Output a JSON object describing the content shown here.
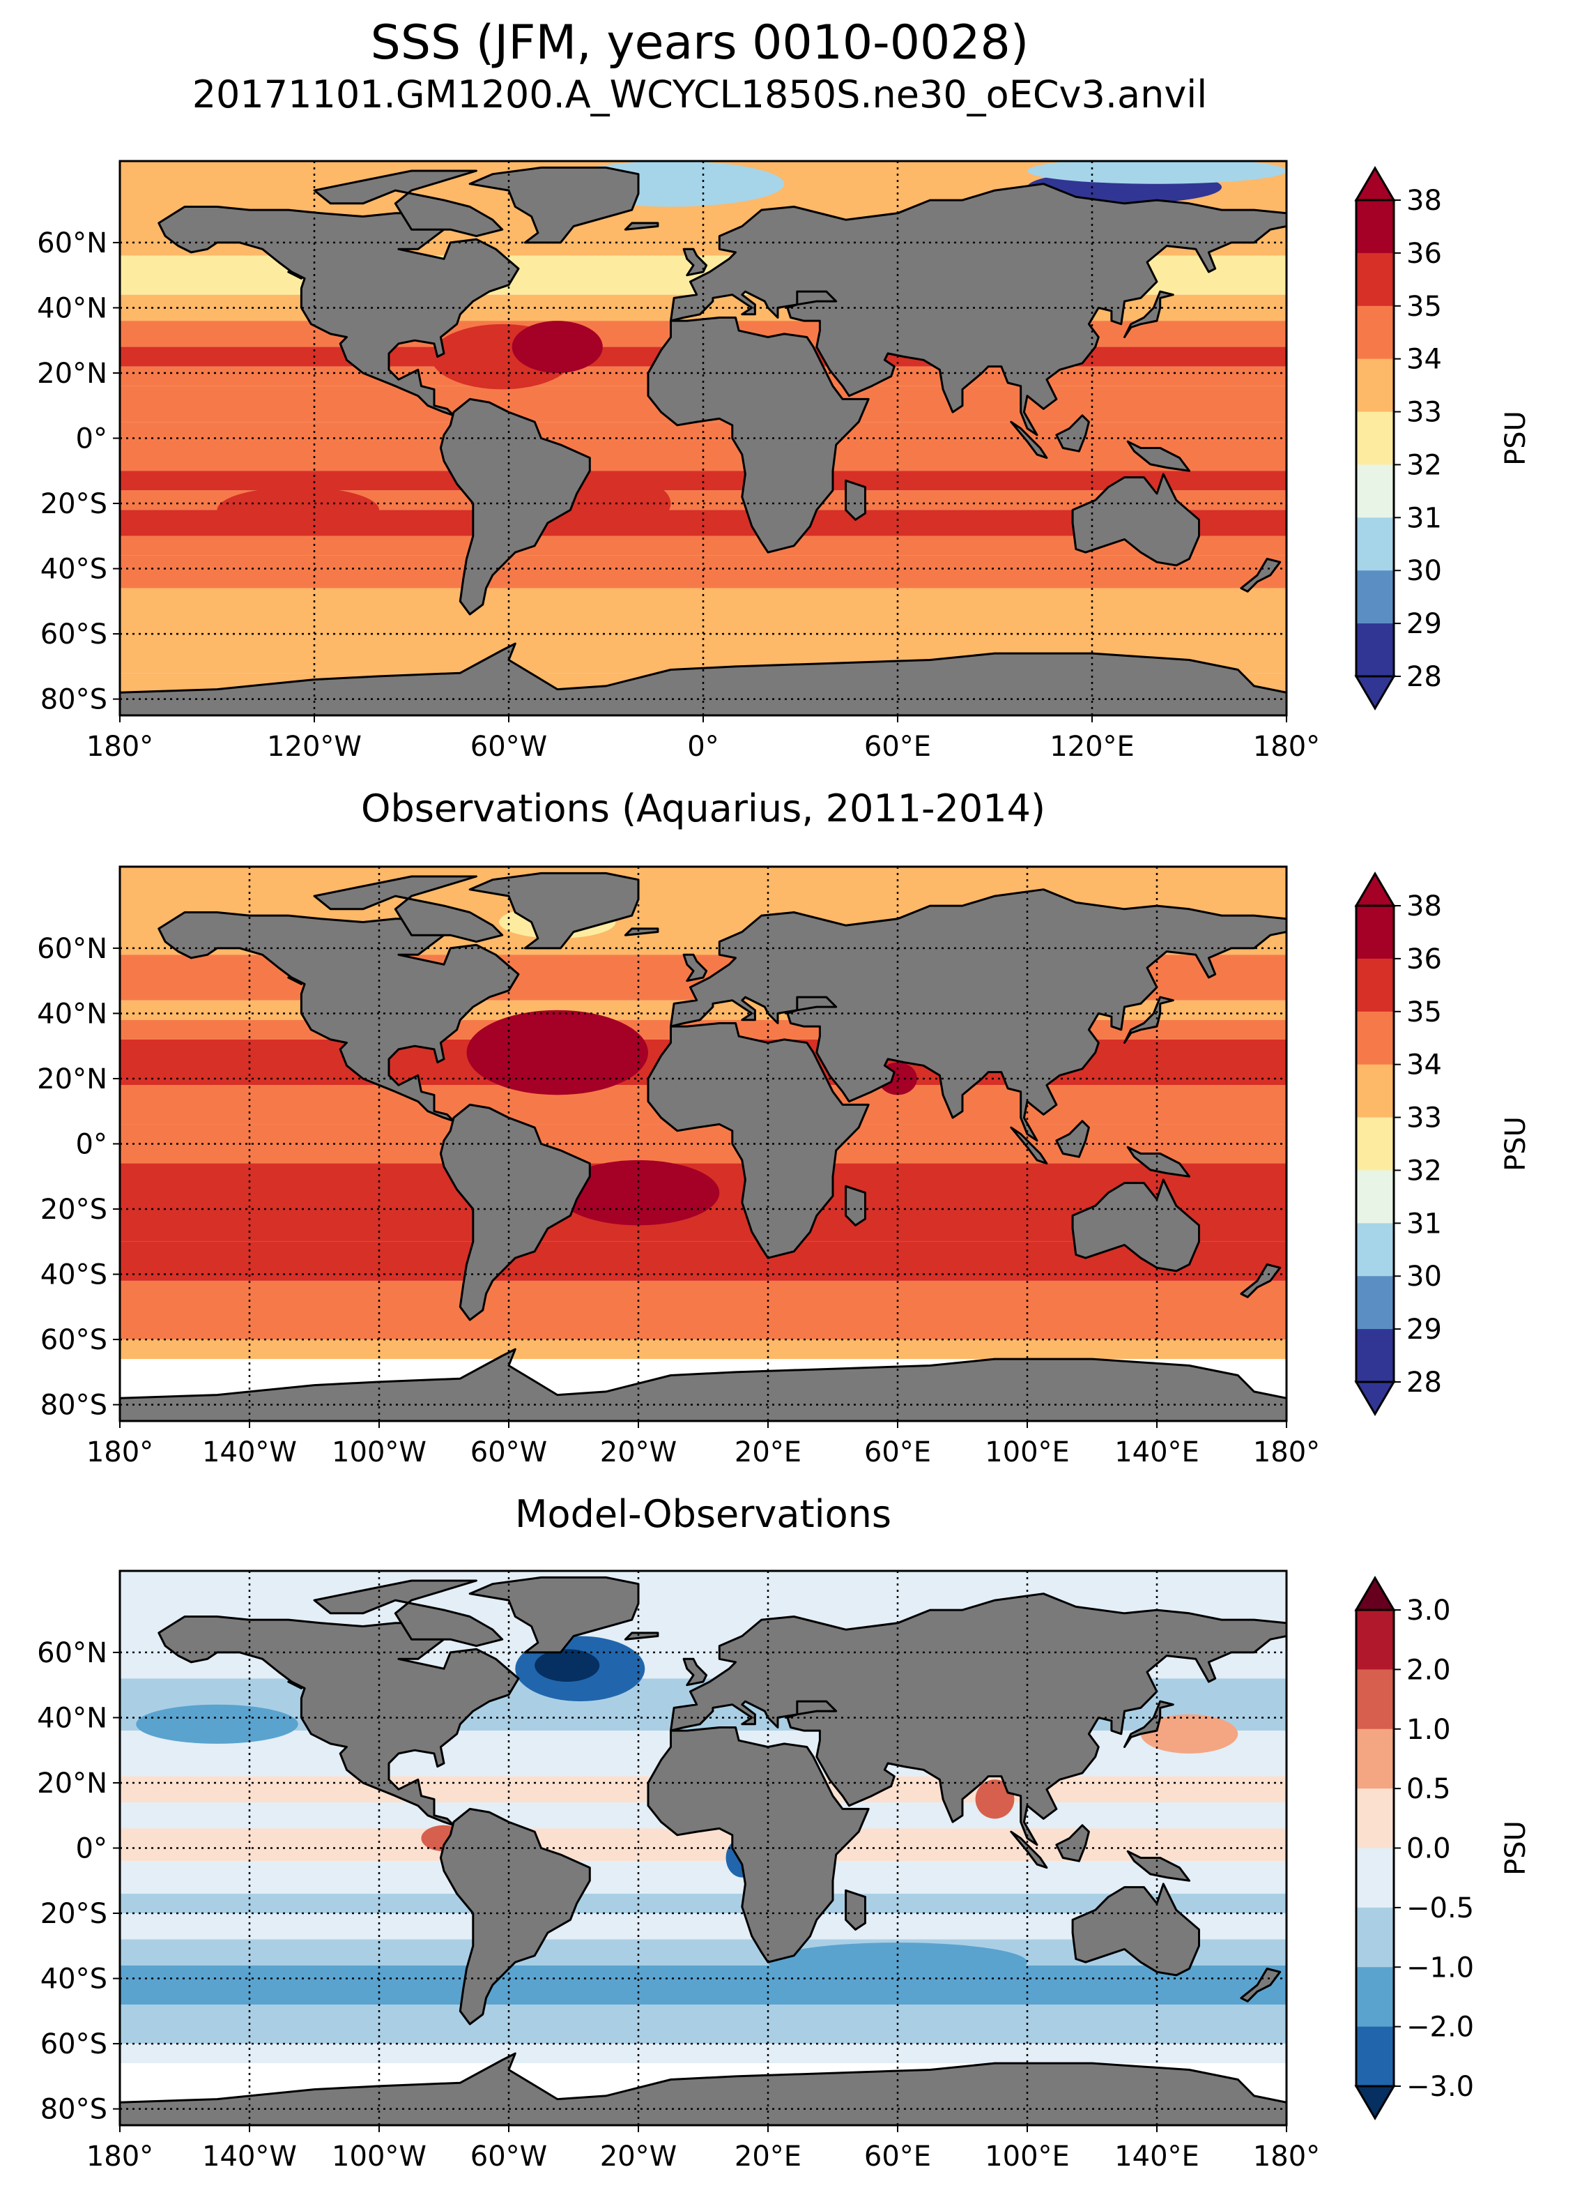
{
  "figure": {
    "title": "SSS (JFM, years 0010-0028)",
    "subtitle": "20171101.GM1200.A_WCYCL1850S.ne30_oECv3.anvil"
  },
  "chart_data": [
    {
      "type": "heatmap",
      "title": "",
      "lat_ticks": [
        "60°N",
        "40°N",
        "20°N",
        "0°",
        "20°S",
        "40°S",
        "60°S",
        "80°S"
      ],
      "lon_ticks": [
        "180°",
        "120°W",
        "60°W",
        "0°",
        "60°E",
        "120°E",
        "180°"
      ],
      "xlim": [
        -180,
        180
      ],
      "ylim": [
        -85,
        85
      ],
      "grid": true,
      "colorbar": {
        "label": "PSU",
        "levels": [
          "28",
          "29",
          "30",
          "31",
          "32",
          "33",
          "34",
          "35",
          "36",
          "38"
        ],
        "colors": [
          "#313695",
          "#5b8fc4",
          "#a6d5e9",
          "#e8f5e6",
          "#fdeca0",
          "#fdb868",
          "#f67a49",
          "#d73027",
          "#a50026"
        ],
        "extend": "both"
      }
    },
    {
      "type": "heatmap",
      "title": "Observations (Aquarius, 2011-2014)",
      "lat_ticks": [
        "60°N",
        "40°N",
        "20°N",
        "0°",
        "20°S",
        "40°S",
        "60°S",
        "80°S"
      ],
      "lon_ticks": [
        "180°",
        "140°W",
        "100°W",
        "60°W",
        "20°W",
        "20°E",
        "60°E",
        "100°E",
        "140°E",
        "180°"
      ],
      "xlim": [
        -180,
        180
      ],
      "ylim": [
        -85,
        85
      ],
      "grid": true,
      "colorbar": {
        "label": "PSU",
        "levels": [
          "28",
          "29",
          "30",
          "31",
          "32",
          "33",
          "34",
          "35",
          "36",
          "38"
        ],
        "colors": [
          "#313695",
          "#5b8fc4",
          "#a6d5e9",
          "#e8f5e6",
          "#fdeca0",
          "#fdb868",
          "#f67a49",
          "#d73027",
          "#a50026"
        ],
        "extend": "both"
      }
    },
    {
      "type": "heatmap",
      "title": "Model-Observations",
      "lat_ticks": [
        "60°N",
        "40°N",
        "20°N",
        "0°",
        "20°S",
        "40°S",
        "60°S",
        "80°S"
      ],
      "lon_ticks": [
        "180°",
        "140°W",
        "100°W",
        "60°W",
        "20°W",
        "20°E",
        "60°E",
        "100°E",
        "140°E",
        "180°"
      ],
      "xlim": [
        -180,
        180
      ],
      "ylim": [
        -85,
        85
      ],
      "grid": true,
      "colorbar": {
        "label": "PSU",
        "levels": [
          "3.0",
          "2.0",
          "1.0",
          "0.5",
          "0.0",
          "−0.5",
          "−1.0",
          "−2.0",
          "−3.0"
        ],
        "colors": [
          "#b2182b",
          "#d6604d",
          "#f4a582",
          "#fbe0d0",
          "#e3eef6",
          "#aacfe5",
          "#5aa3cf",
          "#2166ac"
        ],
        "extend": "both",
        "extend_top_color": "#67001f",
        "extend_bottom_color": "#053061"
      }
    }
  ]
}
